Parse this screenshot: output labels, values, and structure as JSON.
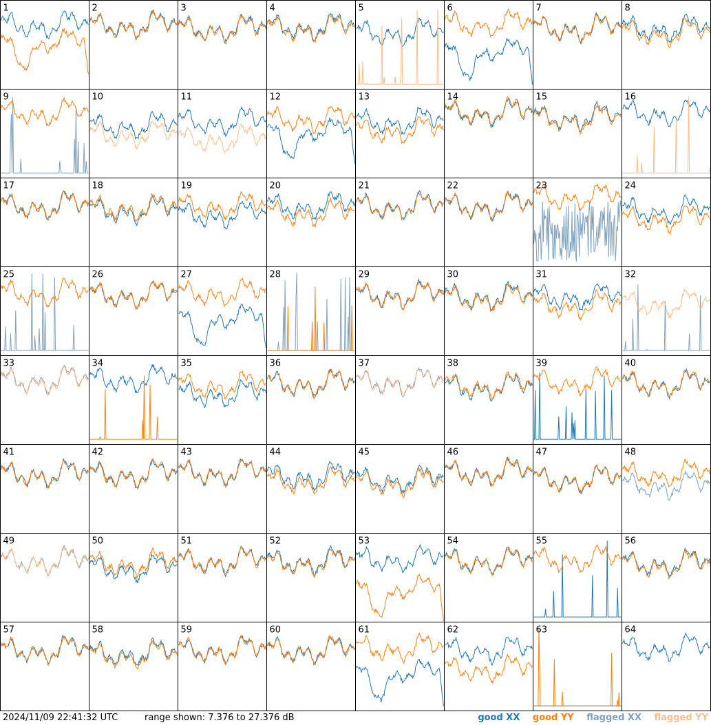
{
  "chart_data": {
    "type": "line",
    "title": "",
    "grid": {
      "rows": 8,
      "cols": 8
    },
    "ylim": [
      7.376,
      27.376
    ],
    "x_range": [
      0,
      1
    ],
    "series_styles": [
      {
        "key": "good_xx",
        "color": "#1f77b4"
      },
      {
        "key": "good_yy",
        "color": "#ff7f0e"
      },
      {
        "key": "flagged_xx",
        "color": "#7fa1be"
      },
      {
        "key": "flagged_yy",
        "color": "#ffbb88"
      }
    ],
    "panels": [
      {
        "label": "1",
        "xx": "good",
        "yy": "good",
        "xx_level": 0.74,
        "yy_level": 0.55,
        "yy_mode": "dip"
      },
      {
        "label": "2",
        "xx": "good",
        "yy": "good",
        "xx_level": 0.74,
        "yy_level": 0.73
      },
      {
        "label": "3",
        "xx": "good",
        "yy": "good",
        "xx_level": 0.7,
        "yy_level": 0.69
      },
      {
        "label": "4",
        "xx": "good",
        "yy": "good",
        "xx_level": 0.72,
        "yy_level": 0.7
      },
      {
        "label": "5",
        "xx": "good",
        "yy": "flagged",
        "xx_level": 0.65,
        "yy_level": 0.05,
        "yy_mode": "spikes"
      },
      {
        "label": "6",
        "xx": "good",
        "yy": "good",
        "xx_level": 0.45,
        "yy_level": 0.75,
        "xx_mode": "dip"
      },
      {
        "label": "7",
        "xx": "good",
        "yy": "good",
        "xx_level": 0.7,
        "yy_level": 0.7
      },
      {
        "label": "8",
        "xx": "good",
        "yy": "good",
        "xx_level": 0.7,
        "yy_level": 0.65
      },
      {
        "label": "9",
        "xx": "flagged",
        "yy": "good",
        "xx_level": 0.05,
        "yy_level": 0.75,
        "xx_mode": "spikes"
      },
      {
        "label": "10",
        "xx": "good",
        "yy": "flagged",
        "xx_level": 0.6,
        "yy_level": 0.5
      },
      {
        "label": "11",
        "xx": "good",
        "yy": "flagged",
        "xx_level": 0.65,
        "yy_level": 0.45
      },
      {
        "label": "12",
        "xx": "good",
        "yy": "good",
        "xx_level": 0.55,
        "yy_level": 0.68,
        "xx_mode": "dip"
      },
      {
        "label": "13",
        "xx": "good",
        "yy": "good",
        "xx_level": 0.65,
        "yy_level": 0.55
      },
      {
        "label": "14",
        "xx": "good",
        "yy": "good",
        "xx_level": 0.75,
        "yy_level": 0.76
      },
      {
        "label": "15",
        "xx": "good",
        "yy": "good",
        "xx_level": 0.7,
        "yy_level": 0.68
      },
      {
        "label": "16",
        "xx": "good",
        "yy": "flagged",
        "xx_level": 0.75,
        "yy_level": 0.05,
        "yy_mode": "spikes"
      },
      {
        "label": "17",
        "xx": "good",
        "yy": "good",
        "xx_level": 0.7,
        "yy_level": 0.7
      },
      {
        "label": "18",
        "xx": "good",
        "yy": "good",
        "xx_level": 0.65,
        "yy_level": 0.68
      },
      {
        "label": "19",
        "xx": "good",
        "yy": "good",
        "xx_level": 0.6,
        "yy_level": 0.7
      },
      {
        "label": "20",
        "xx": "good",
        "yy": "good",
        "xx_level": 0.7,
        "yy_level": 0.62
      },
      {
        "label": "21",
        "xx": "good",
        "yy": "good",
        "xx_level": 0.7,
        "yy_level": 0.69
      },
      {
        "label": "22",
        "xx": "good",
        "yy": "good",
        "xx_level": 0.7,
        "yy_level": 0.7
      },
      {
        "label": "23",
        "xx": "flagged",
        "yy": "good",
        "xx_level": 0.4,
        "yy_level": 0.8,
        "xx_mode": "noisy"
      },
      {
        "label": "24",
        "xx": "good",
        "yy": "good",
        "xx_level": 0.65,
        "yy_level": 0.55
      },
      {
        "label": "25",
        "xx": "flagged",
        "yy": "good",
        "xx_level": 0.05,
        "yy_level": 0.72,
        "xx_mode": "spikes"
      },
      {
        "label": "26",
        "xx": "good",
        "yy": "good",
        "xx_level": 0.7,
        "yy_level": 0.7
      },
      {
        "label": "27",
        "xx": "good",
        "yy": "good",
        "xx_level": 0.45,
        "yy_level": 0.72,
        "xx_mode": "dip"
      },
      {
        "label": "28",
        "xx": "flagged",
        "yy": "good",
        "xx_level": 0.05,
        "yy_level": 0.05,
        "yy_mode": "spikes",
        "xx_mode": "spikes"
      },
      {
        "label": "29",
        "xx": "good",
        "yy": "good",
        "xx_level": 0.7,
        "yy_level": 0.7
      },
      {
        "label": "30",
        "xx": "good",
        "yy": "good",
        "xx_level": 0.68,
        "yy_level": 0.66
      },
      {
        "label": "31",
        "xx": "good",
        "yy": "good",
        "xx_level": 0.68,
        "yy_level": 0.58
      },
      {
        "label": "32",
        "xx": "flagged",
        "yy": "flagged",
        "xx_level": 0.05,
        "yy_level": 0.6,
        "xx_mode": "spikes"
      },
      {
        "label": "33",
        "xx": "flagged",
        "yy": "flagged",
        "xx_level": 0.74,
        "yy_level": 0.73
      },
      {
        "label": "34",
        "xx": "good",
        "yy": "good",
        "xx_level": 0.75,
        "yy_level": 0.05,
        "yy_mode": "spikes"
      },
      {
        "label": "35",
        "xx": "good",
        "yy": "good",
        "xx_level": 0.58,
        "yy_level": 0.68
      },
      {
        "label": "36",
        "xx": "good",
        "yy": "good",
        "xx_level": 0.7,
        "yy_level": 0.7
      },
      {
        "label": "37",
        "xx": "flagged",
        "yy": "flagged",
        "xx_level": 0.72,
        "yy_level": 0.72
      },
      {
        "label": "38",
        "xx": "good",
        "yy": "good",
        "xx_level": 0.66,
        "yy_level": 0.68
      },
      {
        "label": "39",
        "xx": "good",
        "yy": "good",
        "xx_level": 0.05,
        "yy_level": 0.72,
        "xx_mode": "spikes"
      },
      {
        "label": "40",
        "xx": "good",
        "yy": "good",
        "xx_level": 0.7,
        "yy_level": 0.7
      },
      {
        "label": "41",
        "xx": "good",
        "yy": "good",
        "xx_level": 0.68,
        "yy_level": 0.68
      },
      {
        "label": "42",
        "xx": "good",
        "yy": "good",
        "xx_level": 0.68,
        "yy_level": 0.68
      },
      {
        "label": "43",
        "xx": "good",
        "yy": "good",
        "xx_level": 0.7,
        "yy_level": 0.7
      },
      {
        "label": "44",
        "xx": "good",
        "yy": "good",
        "xx_level": 0.66,
        "yy_level": 0.6
      },
      {
        "label": "45",
        "xx": "good",
        "yy": "good",
        "xx_level": 0.62,
        "yy_level": 0.58
      },
      {
        "label": "46",
        "xx": "good",
        "yy": "good",
        "xx_level": 0.7,
        "yy_level": 0.7
      },
      {
        "label": "47",
        "xx": "good",
        "yy": "good",
        "xx_level": 0.62,
        "yy_level": 0.62
      },
      {
        "label": "48",
        "xx": "flagged",
        "yy": "good",
        "xx_level": 0.55,
        "yy_level": 0.68
      },
      {
        "label": "49",
        "xx": "flagged",
        "yy": "flagged",
        "xx_level": 0.7,
        "yy_level": 0.7
      },
      {
        "label": "50",
        "xx": "good",
        "yy": "good",
        "xx_level": 0.62,
        "yy_level": 0.68
      },
      {
        "label": "51",
        "xx": "good",
        "yy": "good",
        "xx_level": 0.7,
        "yy_level": 0.7
      },
      {
        "label": "52",
        "xx": "good",
        "yy": "good",
        "xx_level": 0.7,
        "yy_level": 0.68
      },
      {
        "label": "53",
        "xx": "good",
        "yy": "good",
        "xx_level": 0.72,
        "yy_level": 0.4,
        "yy_mode": "dip"
      },
      {
        "label": "54",
        "xx": "good",
        "yy": "good",
        "xx_level": 0.7,
        "yy_level": 0.7
      },
      {
        "label": "55",
        "xx": "good",
        "yy": "good",
        "xx_level": 0.05,
        "yy_level": 0.72,
        "xx_mode": "spikes"
      },
      {
        "label": "56",
        "xx": "good",
        "yy": "good",
        "xx_level": 0.68,
        "yy_level": 0.66
      },
      {
        "label": "57",
        "xx": "good",
        "yy": "good",
        "xx_level": 0.7,
        "yy_level": 0.7
      },
      {
        "label": "58",
        "xx": "good",
        "yy": "good",
        "xx_level": 0.66,
        "yy_level": 0.64
      },
      {
        "label": "59",
        "xx": "good",
        "yy": "good",
        "xx_level": 0.7,
        "yy_level": 0.7
      },
      {
        "label": "60",
        "xx": "good",
        "yy": "good",
        "xx_level": 0.7,
        "yy_level": 0.7
      },
      {
        "label": "61",
        "xx": "good",
        "yy": "good",
        "xx_level": 0.45,
        "yy_level": 0.72,
        "xx_mode": "dip"
      },
      {
        "label": "62",
        "xx": "good",
        "yy": "good",
        "xx_level": 0.7,
        "yy_level": 0.48
      },
      {
        "label": "63",
        "xx": "good",
        "yy": "good",
        "xx_level": 0.05,
        "yy_level": 0.05,
        "yy_mode": "spikes",
        "xx_mode": "flat"
      },
      {
        "label": "64",
        "xx": "good",
        "yy": "none",
        "xx_level": 0.72,
        "yy_level": 0.0
      }
    ]
  },
  "footer": {
    "timestamp": "2024/11/09 22:41:32 UTC",
    "range_text": "range shown: 7.376 to 27.376 dB",
    "legend": {
      "good_xx": "good XX",
      "good_yy": "good YY",
      "flagged_xx": "flagged XX",
      "flagged_yy": "flagged YY"
    }
  }
}
